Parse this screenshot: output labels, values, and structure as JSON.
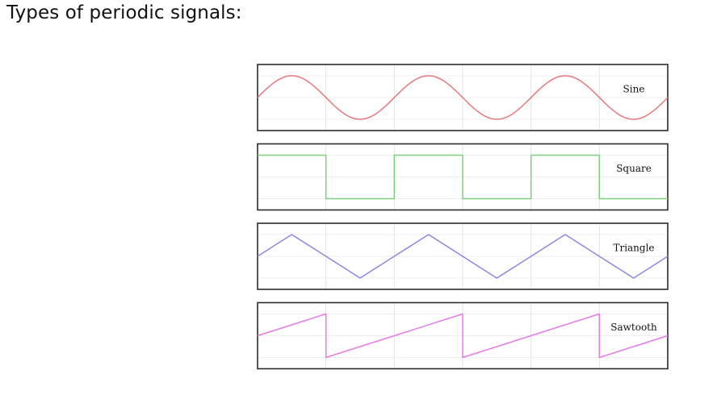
{
  "page": {
    "title": "Types of periodic signals:"
  },
  "signals": [
    {
      "id": "sine",
      "label": "Sine",
      "type": "sine",
      "color": "#e8787c"
    },
    {
      "id": "square",
      "label": "Square",
      "type": "square",
      "color": "#7dcf7d"
    },
    {
      "id": "triangle",
      "label": "Triangle",
      "type": "triangle",
      "color": "#8888e6"
    },
    {
      "id": "sawtooth",
      "label": "Sawtooth",
      "type": "sawtooth",
      "color": "#e67be6"
    }
  ],
  "periods_shown": 3,
  "grid": true
}
